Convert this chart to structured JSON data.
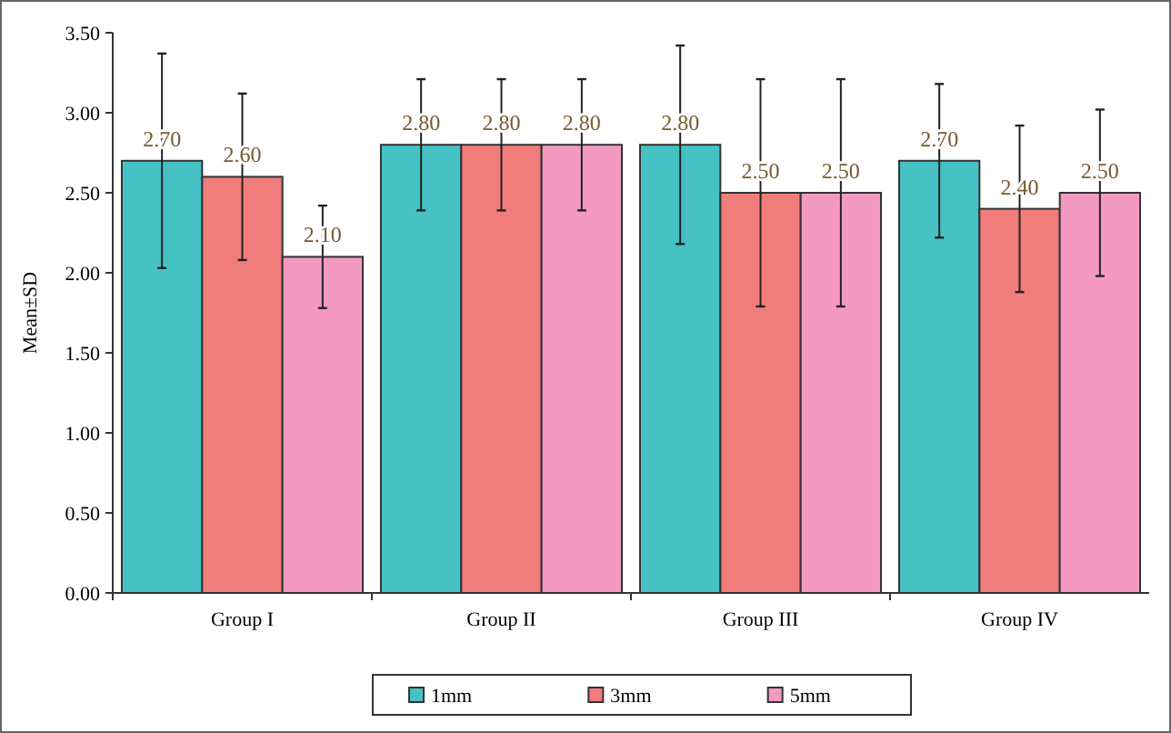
{
  "chart_data": {
    "type": "bar",
    "ylabel": "Mean±SD",
    "categories": [
      "Group I",
      "Group II",
      "Group III",
      "Group IV"
    ],
    "series": [
      {
        "name": "1mm",
        "color": "#46c1c4",
        "values": [
          2.7,
          2.8,
          2.8,
          2.7
        ],
        "value_labels": [
          "2.70",
          "2.80",
          "2.80",
          "2.70"
        ],
        "errors": [
          0.67,
          0.41,
          0.62,
          0.48
        ]
      },
      {
        "name": "3mm",
        "color": "#f07c7c",
        "values": [
          2.6,
          2.8,
          2.5,
          2.4
        ],
        "value_labels": [
          "2.60",
          "2.80",
          "2.50",
          "2.40"
        ],
        "errors": [
          0.52,
          0.41,
          0.71,
          0.52
        ]
      },
      {
        "name": "5mm",
        "color": "#f49ac2",
        "values": [
          2.1,
          2.8,
          2.5,
          2.5
        ],
        "value_labels": [
          "2.10",
          "2.80",
          "2.50",
          "2.50"
        ],
        "errors": [
          0.32,
          0.41,
          0.71,
          0.52
        ]
      }
    ],
    "ylim": [
      0,
      3.5
    ],
    "yticks": [
      {
        "value": 0,
        "label": "0.00"
      },
      {
        "value": 0.5,
        "label": "0.50"
      },
      {
        "value": 1,
        "label": "1.00"
      },
      {
        "value": 1.5,
        "label": "1.50"
      },
      {
        "value": 2,
        "label": "2.00"
      },
      {
        "value": 2.5,
        "label": "2.50"
      },
      {
        "value": 3,
        "label": "3.00"
      },
      {
        "value": 3.5,
        "label": "3.50"
      }
    ],
    "legend": "bottom",
    "grid": false
  }
}
